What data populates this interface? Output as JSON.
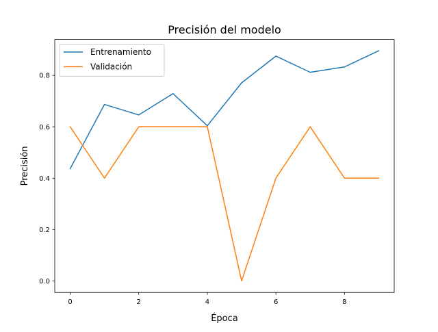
{
  "chart_data": {
    "type": "line",
    "title": "Precisión del modelo",
    "xlabel": "Época",
    "ylabel": "Precisión",
    "xlim": [
      -0.45,
      9.45
    ],
    "ylim": [
      -0.045,
      0.94
    ],
    "x_ticks": [
      0,
      2,
      4,
      6,
      8
    ],
    "x_tick_labels": [
      "0",
      "2",
      "4",
      "6",
      "8"
    ],
    "y_ticks": [
      0.0,
      0.2,
      0.4,
      0.6,
      0.8
    ],
    "y_tick_labels": [
      "0.0",
      "0.2",
      "0.4",
      "0.6",
      "0.8"
    ],
    "grid": false,
    "legend_position": "top-left",
    "x": [
      0,
      1,
      2,
      3,
      4,
      5,
      6,
      7,
      8,
      9
    ],
    "series": [
      {
        "name": "Entrenamiento",
        "color": "#1f77b4",
        "values": [
          0.437,
          0.687,
          0.646,
          0.729,
          0.604,
          0.771,
          0.875,
          0.812,
          0.833,
          0.896
        ]
      },
      {
        "name": "Validación",
        "color": "#ff7f0e",
        "values": [
          0.6,
          0.4,
          0.6,
          0.6,
          0.6,
          0.0,
          0.4,
          0.6,
          0.4,
          0.4
        ]
      }
    ]
  }
}
